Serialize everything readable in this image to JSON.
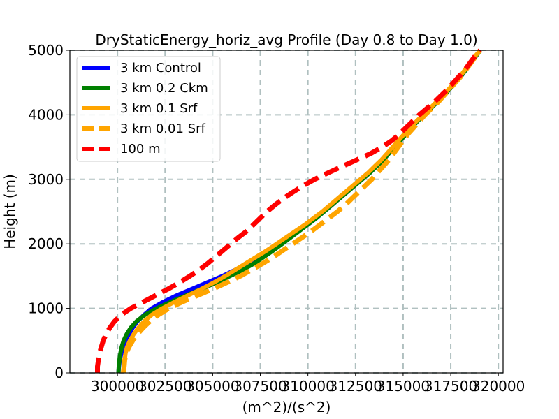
{
  "chart_data": {
    "type": "line",
    "title": "DryStaticEnergy_horiz_avg Profile (Day 0.8 to Day 1.0)",
    "xlabel": "(m^2)/(s^2)",
    "ylabel": "Height (m)",
    "xlim": [
      297500,
      320250
    ],
    "ylim": [
      0,
      5000
    ],
    "xticks": [
      300000,
      302500,
      305000,
      307500,
      310000,
      312500,
      315000,
      317500,
      320000
    ],
    "xtick_labels": [
      "300000",
      "302500",
      "305000",
      "307500",
      "310000",
      "312500",
      "315000",
      "317500",
      "320000"
    ],
    "yticks": [
      0,
      1000,
      2000,
      3000,
      4000,
      5000
    ],
    "ytick_labels": [
      "0",
      "1000",
      "2000",
      "3000",
      "4000",
      "5000"
    ],
    "grid": true,
    "legend_position": "top-left",
    "series": [
      {
        "name": "3 km Control",
        "color": "#0000ff",
        "style": "solid",
        "points": [
          [
            300050,
            0
          ],
          [
            300080,
            100
          ],
          [
            300120,
            200
          ],
          [
            300200,
            300
          ],
          [
            300300,
            400
          ],
          [
            300450,
            500
          ],
          [
            300600,
            600
          ],
          [
            300800,
            700
          ],
          [
            301050,
            800
          ],
          [
            301400,
            900
          ],
          [
            301800,
            1000
          ],
          [
            302400,
            1100
          ],
          [
            303100,
            1200
          ],
          [
            303900,
            1300
          ],
          [
            304700,
            1400
          ],
          [
            305500,
            1500
          ],
          [
            306200,
            1600
          ],
          [
            306900,
            1700
          ],
          [
            307500,
            1800
          ],
          [
            308000,
            1900
          ],
          [
            308500,
            2000
          ],
          [
            309000,
            2100
          ],
          [
            309500,
            2200
          ],
          [
            310000,
            2300
          ],
          [
            310450,
            2400
          ],
          [
            310850,
            2500
          ],
          [
            311250,
            2600
          ],
          [
            311650,
            2700
          ],
          [
            312050,
            2800
          ],
          [
            312450,
            2900
          ],
          [
            312850,
            3000
          ],
          [
            313250,
            3100
          ],
          [
            313600,
            3200
          ],
          [
            313950,
            3300
          ],
          [
            314250,
            3400
          ],
          [
            314550,
            3500
          ],
          [
            314850,
            3600
          ],
          [
            315150,
            3700
          ],
          [
            315450,
            3800
          ],
          [
            315750,
            3900
          ],
          [
            316100,
            4000
          ],
          [
            316450,
            4100
          ],
          [
            316800,
            4200
          ],
          [
            317150,
            4300
          ],
          [
            317450,
            4400
          ],
          [
            317750,
            4500
          ],
          [
            318050,
            4600
          ],
          [
            318300,
            4700
          ],
          [
            318550,
            4800
          ],
          [
            318800,
            4900
          ],
          [
            319050,
            5000
          ]
        ]
      },
      {
        "name": "3 km 0.2 Ckm",
        "color": "#008000",
        "style": "solid",
        "points": [
          [
            300050,
            0
          ],
          [
            300070,
            100
          ],
          [
            300100,
            200
          ],
          [
            300150,
            300
          ],
          [
            300220,
            400
          ],
          [
            300320,
            500
          ],
          [
            300480,
            600
          ],
          [
            300700,
            700
          ],
          [
            301000,
            800
          ],
          [
            301450,
            900
          ],
          [
            302050,
            1000
          ],
          [
            302800,
            1100
          ],
          [
            303600,
            1200
          ],
          [
            304400,
            1300
          ],
          [
            305200,
            1400
          ],
          [
            305900,
            1500
          ],
          [
            306600,
            1600
          ],
          [
            307200,
            1700
          ],
          [
            307700,
            1800
          ],
          [
            308200,
            1900
          ],
          [
            308650,
            2000
          ],
          [
            309100,
            2100
          ],
          [
            309550,
            2200
          ],
          [
            310000,
            2300
          ],
          [
            310450,
            2400
          ],
          [
            310850,
            2500
          ],
          [
            311250,
            2600
          ],
          [
            311650,
            2700
          ],
          [
            312050,
            2800
          ],
          [
            312450,
            2900
          ],
          [
            312850,
            3000
          ],
          [
            313250,
            3100
          ],
          [
            313600,
            3200
          ],
          [
            313950,
            3300
          ],
          [
            314250,
            3400
          ],
          [
            314550,
            3500
          ],
          [
            314850,
            3600
          ],
          [
            315150,
            3700
          ],
          [
            315450,
            3800
          ],
          [
            315750,
            3900
          ],
          [
            316100,
            4000
          ],
          [
            316450,
            4100
          ],
          [
            316800,
            4200
          ],
          [
            317150,
            4300
          ],
          [
            317450,
            4400
          ],
          [
            317750,
            4500
          ],
          [
            318050,
            4600
          ],
          [
            318300,
            4700
          ],
          [
            318550,
            4800
          ],
          [
            318800,
            4900
          ],
          [
            319050,
            5000
          ]
        ]
      },
      {
        "name": "3 km 0.1 Srf",
        "color": "#ffa500",
        "style": "solid",
        "points": [
          [
            300350,
            0
          ],
          [
            300350,
            100
          ],
          [
            300380,
            200
          ],
          [
            300420,
            300
          ],
          [
            300500,
            400
          ],
          [
            300650,
            500
          ],
          [
            300850,
            600
          ],
          [
            301100,
            700
          ],
          [
            301400,
            800
          ],
          [
            301800,
            900
          ],
          [
            302350,
            1000
          ],
          [
            303000,
            1100
          ],
          [
            303700,
            1200
          ],
          [
            304400,
            1300
          ],
          [
            305050,
            1400
          ],
          [
            305650,
            1500
          ],
          [
            306200,
            1600
          ],
          [
            306750,
            1700
          ],
          [
            307300,
            1800
          ],
          [
            307850,
            1900
          ],
          [
            308350,
            2000
          ],
          [
            308850,
            2100
          ],
          [
            309350,
            2200
          ],
          [
            309850,
            2300
          ],
          [
            310300,
            2400
          ],
          [
            310750,
            2500
          ],
          [
            311150,
            2600
          ],
          [
            311550,
            2700
          ],
          [
            311950,
            2800
          ],
          [
            312350,
            2900
          ],
          [
            312750,
            3000
          ],
          [
            313150,
            3100
          ],
          [
            313500,
            3200
          ],
          [
            313850,
            3300
          ],
          [
            314150,
            3400
          ],
          [
            314450,
            3500
          ],
          [
            314750,
            3600
          ],
          [
            315050,
            3700
          ],
          [
            315350,
            3800
          ],
          [
            315700,
            3900
          ],
          [
            316050,
            4000
          ],
          [
            316400,
            4100
          ],
          [
            316750,
            4200
          ],
          [
            317100,
            4300
          ],
          [
            317400,
            4400
          ],
          [
            317700,
            4500
          ],
          [
            318000,
            4600
          ],
          [
            318250,
            4700
          ],
          [
            318500,
            4800
          ],
          [
            318750,
            4900
          ],
          [
            319050,
            5000
          ]
        ]
      },
      {
        "name": "3 km 0.01 Srf",
        "color": "#ffa500",
        "style": "dashed",
        "points": [
          [
            300300,
            0
          ],
          [
            300350,
            100
          ],
          [
            300380,
            200
          ],
          [
            300450,
            300
          ],
          [
            300600,
            400
          ],
          [
            300800,
            500
          ],
          [
            301050,
            600
          ],
          [
            301350,
            700
          ],
          [
            301700,
            800
          ],
          [
            302150,
            900
          ],
          [
            302700,
            1000
          ],
          [
            303400,
            1100
          ],
          [
            304200,
            1200
          ],
          [
            305000,
            1300
          ],
          [
            305750,
            1400
          ],
          [
            306450,
            1500
          ],
          [
            307050,
            1600
          ],
          [
            307650,
            1700
          ],
          [
            308200,
            1800
          ],
          [
            308700,
            1900
          ],
          [
            309200,
            2000
          ],
          [
            309700,
            2100
          ],
          [
            310200,
            2200
          ],
          [
            310650,
            2300
          ],
          [
            311100,
            2400
          ],
          [
            311550,
            2500
          ],
          [
            311950,
            2600
          ],
          [
            312300,
            2700
          ],
          [
            312650,
            2800
          ],
          [
            313000,
            2900
          ],
          [
            313350,
            3000
          ],
          [
            313650,
            3100
          ],
          [
            313950,
            3200
          ],
          [
            314250,
            3300
          ],
          [
            314500,
            3400
          ],
          [
            314750,
            3500
          ],
          [
            315000,
            3600
          ],
          [
            315250,
            3700
          ],
          [
            315550,
            3800
          ],
          [
            315850,
            3900
          ],
          [
            316150,
            4000
          ],
          [
            316500,
            4100
          ],
          [
            316850,
            4200
          ],
          [
            317150,
            4300
          ],
          [
            317450,
            4400
          ],
          [
            317750,
            4500
          ],
          [
            318050,
            4600
          ],
          [
            318300,
            4700
          ],
          [
            318550,
            4800
          ],
          [
            318800,
            4900
          ],
          [
            319050,
            5000
          ]
        ]
      },
      {
        "name": "100 m",
        "color": "#ff0000",
        "style": "dashed",
        "points": [
          [
            298950,
            0
          ],
          [
            298950,
            100
          ],
          [
            299000,
            200
          ],
          [
            299050,
            300
          ],
          [
            299150,
            400
          ],
          [
            299250,
            500
          ],
          [
            299400,
            600
          ],
          [
            299600,
            700
          ],
          [
            299850,
            800
          ],
          [
            300200,
            900
          ],
          [
            300700,
            1000
          ],
          [
            301350,
            1100
          ],
          [
            302000,
            1200
          ],
          [
            302650,
            1300
          ],
          [
            303250,
            1400
          ],
          [
            303800,
            1500
          ],
          [
            304300,
            1600
          ],
          [
            304750,
            1700
          ],
          [
            305150,
            1800
          ],
          [
            305550,
            1900
          ],
          [
            305950,
            2000
          ],
          [
            306350,
            2100
          ],
          [
            306800,
            2200
          ],
          [
            307150,
            2300
          ],
          [
            307500,
            2400
          ],
          [
            307850,
            2500
          ],
          [
            308250,
            2600
          ],
          [
            308700,
            2700
          ],
          [
            309200,
            2800
          ],
          [
            309750,
            2900
          ],
          [
            310350,
            3000
          ],
          [
            311050,
            3100
          ],
          [
            311800,
            3200
          ],
          [
            312550,
            3300
          ],
          [
            313300,
            3400
          ],
          [
            313900,
            3500
          ],
          [
            314400,
            3600
          ],
          [
            314800,
            3700
          ],
          [
            315150,
            3800
          ],
          [
            315500,
            3900
          ],
          [
            315850,
            4000
          ],
          [
            316250,
            4100
          ],
          [
            316650,
            4200
          ],
          [
            317000,
            4300
          ],
          [
            317350,
            4400
          ],
          [
            317650,
            4500
          ],
          [
            317950,
            4600
          ],
          [
            318250,
            4700
          ],
          [
            318500,
            4800
          ],
          [
            318750,
            4900
          ],
          [
            319050,
            5000
          ]
        ]
      }
    ]
  }
}
